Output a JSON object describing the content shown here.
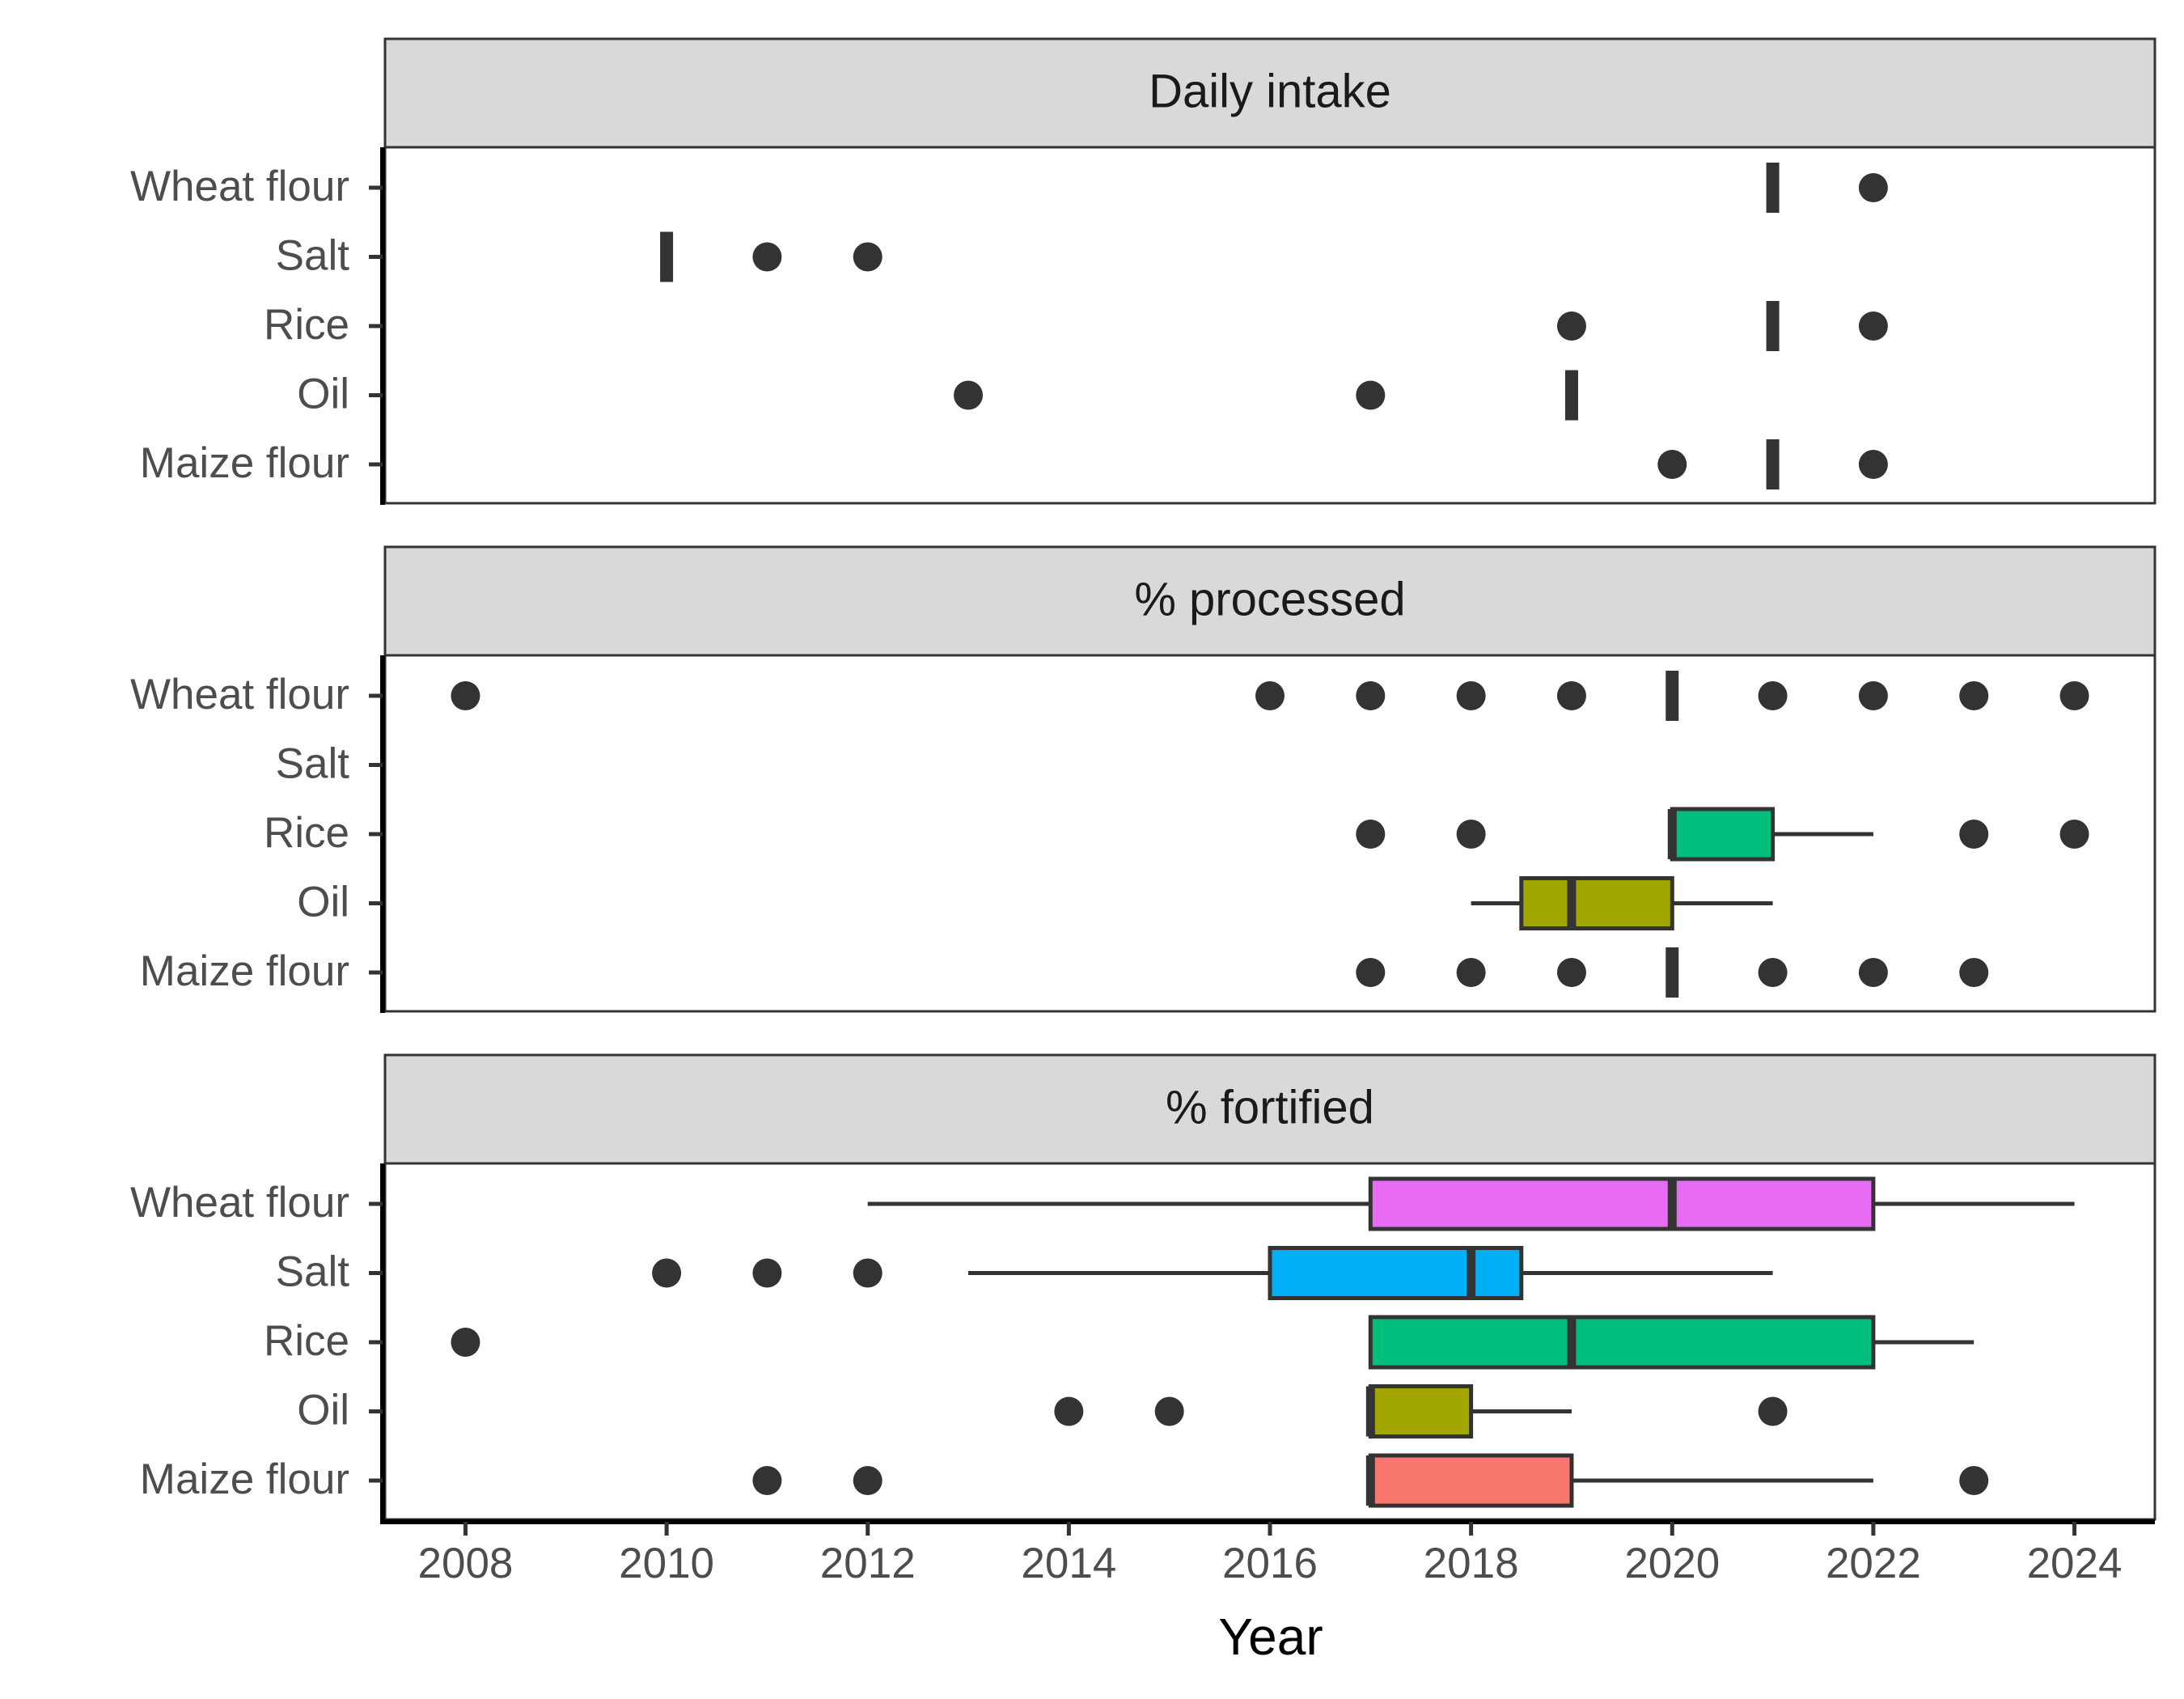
{
  "chart_data": {
    "type": "boxplot",
    "xlabel": "Year",
    "xlim": [
      2007.2,
      2024.8
    ],
    "x_ticks": [
      "2008",
      "2010",
      "2012",
      "2014",
      "2016",
      "2018",
      "2020",
      "2022",
      "2024"
    ],
    "categories": [
      "Wheat flour",
      "Salt",
      "Rice",
      "Oil",
      "Maize flour"
    ],
    "fill_colors": {
      "Wheat flour": "#E76BF3",
      "Salt": "#00B0F6",
      "Rice": "#00BF7D",
      "Oil": "#A3A500",
      "Maize flour": "#F8766D"
    },
    "facets": [
      {
        "title": "Daily intake",
        "boxes": [
          {
            "category": "Wheat flour",
            "q1": 2021,
            "median": 2021,
            "q3": 2021,
            "whisker_low": 2021,
            "whisker_high": 2021,
            "outliers": [
              2022
            ]
          },
          {
            "category": "Salt",
            "q1": 2010,
            "median": 2010,
            "q3": 2010,
            "whisker_low": 2010,
            "whisker_high": 2010,
            "outliers": [
              2011,
              2012
            ]
          },
          {
            "category": "Rice",
            "q1": 2021,
            "median": 2021,
            "q3": 2021,
            "whisker_low": 2021,
            "whisker_high": 2021,
            "outliers": [
              2019,
              2022
            ]
          },
          {
            "category": "Oil",
            "q1": 2019,
            "median": 2019,
            "q3": 2019,
            "whisker_low": 2019,
            "whisker_high": 2019,
            "outliers": [
              2013,
              2017
            ]
          },
          {
            "category": "Maize flour",
            "q1": 2021,
            "median": 2021,
            "q3": 2021,
            "whisker_low": 2021,
            "whisker_high": 2021,
            "outliers": [
              2020,
              2022
            ]
          }
        ]
      },
      {
        "title": "% processed",
        "boxes": [
          {
            "category": "Wheat flour",
            "q1": 2020,
            "median": 2020,
            "q3": 2020,
            "whisker_low": 2020,
            "whisker_high": 2020,
            "outliers": [
              2008,
              2016,
              2017,
              2018,
              2019,
              2021,
              2022,
              2023,
              2024
            ]
          },
          {
            "category": "Rice",
            "q1": 2020,
            "median": 2020,
            "q3": 2021,
            "whisker_low": 2020,
            "whisker_high": 2022,
            "outliers": [
              2017,
              2018,
              2023,
              2024
            ]
          },
          {
            "category": "Oil",
            "q1": 2018.5,
            "median": 2019,
            "q3": 2020,
            "whisker_low": 2018,
            "whisker_high": 2021,
            "outliers": []
          },
          {
            "category": "Maize flour",
            "q1": 2020,
            "median": 2020,
            "q3": 2020,
            "whisker_low": 2020,
            "whisker_high": 2020,
            "outliers": [
              2017,
              2018,
              2019,
              2021,
              2022,
              2023
            ]
          }
        ]
      },
      {
        "title": "% fortified",
        "boxes": [
          {
            "category": "Wheat flour",
            "q1": 2017,
            "median": 2020,
            "q3": 2022,
            "whisker_low": 2012,
            "whisker_high": 2024,
            "outliers": []
          },
          {
            "category": "Salt",
            "q1": 2016,
            "median": 2018,
            "q3": 2018.5,
            "whisker_low": 2013,
            "whisker_high": 2021,
            "outliers": [
              2010,
              2011,
              2012
            ]
          },
          {
            "category": "Rice",
            "q1": 2017,
            "median": 2019,
            "q3": 2022,
            "whisker_low": 2017,
            "whisker_high": 2023,
            "outliers": [
              2008
            ]
          },
          {
            "category": "Oil",
            "q1": 2017,
            "median": 2017,
            "q3": 2018,
            "whisker_low": 2017,
            "whisker_high": 2019,
            "outliers": [
              2014,
              2015,
              2021
            ]
          },
          {
            "category": "Maize flour",
            "q1": 2017,
            "median": 2017,
            "q3": 2019,
            "whisker_low": 2017,
            "whisker_high": 2022,
            "outliers": [
              2011,
              2012,
              2023
            ]
          }
        ]
      }
    ]
  }
}
